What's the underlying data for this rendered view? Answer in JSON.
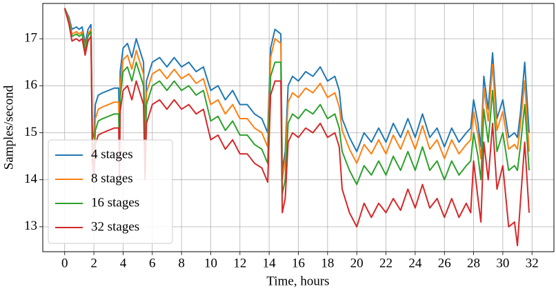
{
  "chart_data": {
    "type": "line",
    "x_label": "Time, hours",
    "y_label": "Samples/second",
    "xlim": [
      -1.5,
      33.5
    ],
    "ylim": [
      12.47,
      17.75
    ],
    "xticks": [
      0,
      2,
      4,
      6,
      8,
      10,
      12,
      14,
      16,
      18,
      20,
      22,
      24,
      26,
      28,
      30,
      32
    ],
    "yticks": [
      13,
      14,
      15,
      16,
      17
    ],
    "grid": true,
    "legend": "lower left",
    "x": [
      0,
      0.3,
      0.5,
      0.8,
      1.0,
      1.2,
      1.4,
      1.6,
      1.8,
      1.9,
      2.0,
      2.1,
      2.3,
      2.6,
      3.0,
      3.4,
      3.7,
      3.75,
      3.8,
      4.0,
      4.3,
      4.6,
      4.9,
      5.2,
      5.4,
      5.5,
      5.6,
      6.0,
      6.5,
      7.0,
      7.5,
      8.0,
      8.5,
      9.0,
      9.5,
      10.0,
      10.5,
      11.0,
      11.5,
      12.0,
      12.5,
      13.0,
      13.5,
      13.9,
      14.1,
      14.4,
      14.8,
      14.9,
      15.1,
      15.3,
      15.6,
      16.0,
      16.5,
      17.0,
      17.5,
      18.0,
      18.5,
      18.8,
      19.0,
      19.5,
      20.0,
      20.5,
      21.0,
      21.5,
      22.0,
      22.5,
      23.0,
      23.5,
      24.0,
      24.5,
      25.0,
      25.5,
      26.0,
      26.5,
      27.0,
      27.5,
      27.8,
      28.0,
      28.3,
      28.5,
      28.7,
      29.0,
      29.3,
      29.6,
      30.0,
      30.4,
      30.8,
      31.0,
      31.2,
      31.5,
      31.8
    ],
    "series": [
      {
        "name": "4 stages",
        "color": "#1f77b4",
        "values": [
          17.65,
          17.45,
          17.2,
          17.25,
          17.2,
          17.25,
          16.9,
          17.2,
          17.3,
          15.0,
          14.9,
          15.6,
          15.8,
          15.85,
          15.9,
          15.95,
          15.95,
          14.9,
          16.3,
          16.8,
          16.9,
          16.6,
          17.0,
          16.7,
          16.5,
          14.9,
          16.1,
          16.5,
          16.6,
          16.4,
          16.6,
          16.4,
          16.5,
          16.3,
          16.4,
          15.9,
          16.0,
          15.7,
          15.9,
          15.6,
          15.6,
          15.4,
          15.3,
          15.0,
          16.8,
          17.2,
          17.1,
          14.2,
          14.6,
          16.0,
          16.2,
          16.1,
          16.3,
          16.2,
          16.4,
          16.1,
          16.2,
          15.9,
          15.3,
          14.9,
          14.6,
          15.0,
          14.8,
          15.1,
          14.8,
          15.2,
          14.9,
          15.3,
          14.9,
          15.4,
          14.9,
          15.1,
          14.7,
          15.1,
          14.8,
          15.0,
          15.1,
          15.7,
          15.2,
          14.7,
          16.2,
          15.5,
          16.7,
          15.3,
          15.7,
          14.9,
          15.0,
          14.9,
          15.4,
          16.5,
          15.0
        ]
      },
      {
        "name": "8 stages",
        "color": "#ff7f0e",
        "values": [
          17.65,
          17.4,
          17.1,
          17.15,
          17.1,
          17.15,
          16.8,
          17.1,
          17.2,
          14.8,
          14.6,
          15.3,
          15.5,
          15.55,
          15.6,
          15.65,
          15.65,
          14.6,
          16.0,
          16.55,
          16.65,
          16.35,
          16.75,
          16.45,
          16.25,
          14.65,
          15.85,
          16.25,
          16.35,
          16.15,
          16.35,
          16.15,
          16.25,
          16.05,
          16.15,
          15.6,
          15.7,
          15.4,
          15.6,
          15.3,
          15.3,
          15.1,
          15.0,
          14.7,
          16.6,
          17.0,
          16.9,
          14.0,
          14.4,
          15.65,
          15.85,
          15.75,
          15.95,
          15.85,
          16.05,
          15.75,
          15.85,
          15.55,
          15.05,
          14.65,
          14.35,
          14.75,
          14.55,
          14.85,
          14.55,
          14.95,
          14.65,
          15.05,
          14.65,
          15.15,
          14.65,
          14.85,
          14.45,
          14.85,
          14.55,
          14.75,
          14.85,
          15.45,
          14.95,
          14.45,
          15.95,
          15.25,
          16.45,
          15.05,
          15.45,
          14.65,
          14.75,
          14.65,
          15.15,
          16.1,
          14.6
        ]
      },
      {
        "name": "16 stages",
        "color": "#2ca02c",
        "values": [
          17.65,
          17.35,
          17.05,
          17.1,
          17.05,
          17.1,
          16.75,
          17.05,
          17.15,
          14.6,
          14.35,
          15.05,
          15.25,
          15.3,
          15.35,
          15.4,
          15.4,
          14.35,
          15.75,
          16.3,
          16.4,
          16.1,
          16.5,
          16.2,
          16.0,
          14.4,
          15.6,
          16.0,
          16.1,
          15.9,
          16.1,
          15.9,
          16.0,
          15.8,
          15.9,
          15.25,
          15.35,
          15.05,
          15.25,
          14.95,
          14.95,
          14.75,
          14.65,
          14.35,
          16.2,
          16.5,
          16.5,
          13.7,
          14.0,
          15.2,
          15.4,
          15.3,
          15.5,
          15.4,
          15.6,
          15.3,
          15.4,
          15.1,
          14.6,
          14.2,
          13.9,
          14.3,
          14.1,
          14.4,
          14.1,
          14.5,
          14.2,
          14.6,
          14.2,
          14.7,
          14.2,
          14.4,
          14.0,
          14.4,
          14.1,
          14.3,
          14.4,
          15.0,
          14.5,
          14.0,
          15.5,
          14.8,
          15.9,
          14.6,
          15.0,
          14.2,
          14.3,
          14.2,
          14.7,
          15.6,
          14.2
        ]
      },
      {
        "name": "32 stages",
        "color": "#d62728",
        "values": [
          17.65,
          17.3,
          16.95,
          17.0,
          16.95,
          17.0,
          16.65,
          16.95,
          17.05,
          14.4,
          14.05,
          14.75,
          14.95,
          15.0,
          15.05,
          15.1,
          15.1,
          14.05,
          15.45,
          15.9,
          16.0,
          15.7,
          16.1,
          15.8,
          15.6,
          14.0,
          15.2,
          15.6,
          15.7,
          15.5,
          15.7,
          15.5,
          15.6,
          15.4,
          15.5,
          14.85,
          14.95,
          14.65,
          14.85,
          14.55,
          14.55,
          14.35,
          14.25,
          13.95,
          15.8,
          16.1,
          16.1,
          13.3,
          13.6,
          14.8,
          15.0,
          14.9,
          15.1,
          15.0,
          15.2,
          14.9,
          15.0,
          14.7,
          13.8,
          13.3,
          13.0,
          13.5,
          13.2,
          13.5,
          13.3,
          13.6,
          13.35,
          13.8,
          13.4,
          13.9,
          13.4,
          13.6,
          13.2,
          13.6,
          13.2,
          13.5,
          13.3,
          14.4,
          13.6,
          13.1,
          14.8,
          14.0,
          15.2,
          13.8,
          14.3,
          13.0,
          13.1,
          12.6,
          13.5,
          14.8,
          13.3
        ]
      }
    ]
  }
}
